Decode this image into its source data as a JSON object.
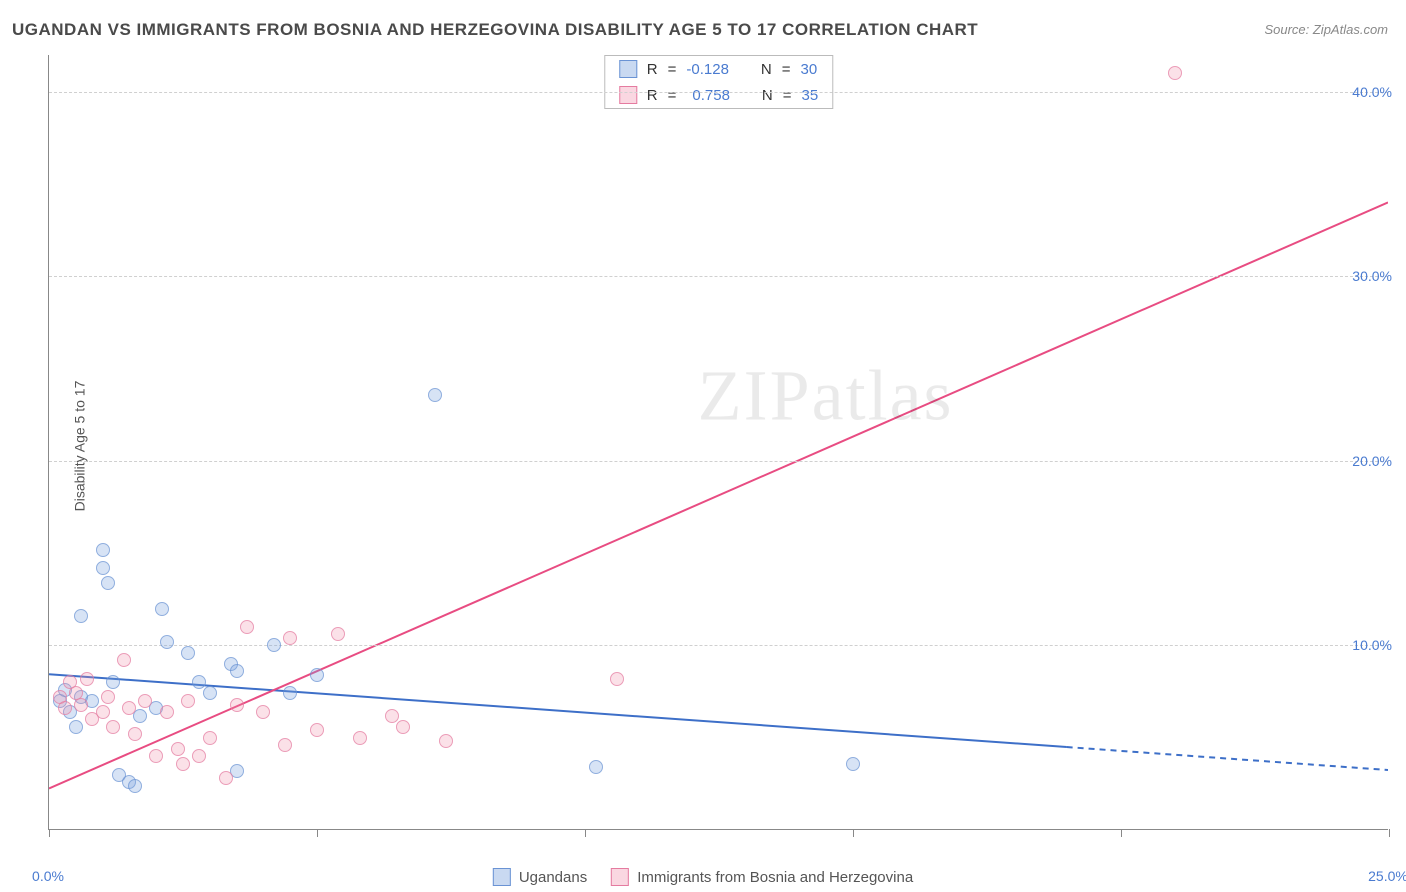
{
  "title": "UGANDAN VS IMMIGRANTS FROM BOSNIA AND HERZEGOVINA DISABILITY AGE 5 TO 17 CORRELATION CHART",
  "source_label": "Source: ZipAtlas.com",
  "y_axis_title": "Disability Age 5 to 17",
  "watermark": {
    "bold": "ZIP",
    "light": "atlas"
  },
  "chart": {
    "type": "scatter",
    "xlim": [
      0,
      25
    ],
    "ylim": [
      0,
      42
    ],
    "x_ticks": [
      0,
      5,
      10,
      15,
      20,
      25
    ],
    "x_tick_labels": [
      "0.0%",
      "",
      "",
      "",
      "",
      "25.0%"
    ],
    "y_ticks": [
      10,
      20,
      30,
      40
    ],
    "y_tick_labels": [
      "10.0%",
      "20.0%",
      "30.0%",
      "40.0%"
    ],
    "grid_color": "#d0d0d0",
    "background_color": "#ffffff",
    "marker_size": 14,
    "series": [
      {
        "name": "Ugandans",
        "color_fill": "rgba(120,160,220,0.4)",
        "color_stroke": "#6a93d4",
        "css_class": "blue",
        "r_value": "-0.128",
        "n_value": "30",
        "trend": {
          "x1": 0,
          "y1": 8.4,
          "x2": 25,
          "y2": 3.2,
          "solid_until_x": 19.0,
          "stroke": "#3d6fc8",
          "width": 2
        },
        "points": [
          [
            0.2,
            7.0
          ],
          [
            0.3,
            7.6
          ],
          [
            0.4,
            6.4
          ],
          [
            0.5,
            5.6
          ],
          [
            0.6,
            7.2
          ],
          [
            0.6,
            11.6
          ],
          [
            0.8,
            7.0
          ],
          [
            1.0,
            14.2
          ],
          [
            1.0,
            15.2
          ],
          [
            1.1,
            13.4
          ],
          [
            1.2,
            8.0
          ],
          [
            1.3,
            3.0
          ],
          [
            1.5,
            2.6
          ],
          [
            1.6,
            2.4
          ],
          [
            1.7,
            6.2
          ],
          [
            2.0,
            6.6
          ],
          [
            2.1,
            12.0
          ],
          [
            2.2,
            10.2
          ],
          [
            2.6,
            9.6
          ],
          [
            2.8,
            8.0
          ],
          [
            3.0,
            7.4
          ],
          [
            3.4,
            9.0
          ],
          [
            3.5,
            3.2
          ],
          [
            3.5,
            8.6
          ],
          [
            4.2,
            10.0
          ],
          [
            4.5,
            7.4
          ],
          [
            5.0,
            8.4
          ],
          [
            7.2,
            23.6
          ],
          [
            10.2,
            3.4
          ],
          [
            15.0,
            3.6
          ]
        ]
      },
      {
        "name": "Immigrants from Bosnia and Herzegovina",
        "color_fill": "rgba(240,140,170,0.35)",
        "color_stroke": "#e57ba0",
        "css_class": "pink",
        "r_value": "0.758",
        "n_value": "35",
        "trend": {
          "x1": 0,
          "y1": 2.2,
          "x2": 25,
          "y2": 34.0,
          "solid_until_x": 25,
          "stroke": "#e84c82",
          "width": 2
        },
        "points": [
          [
            0.2,
            7.2
          ],
          [
            0.3,
            6.6
          ],
          [
            0.4,
            8.0
          ],
          [
            0.5,
            7.4
          ],
          [
            0.6,
            6.8
          ],
          [
            0.7,
            8.2
          ],
          [
            0.8,
            6.0
          ],
          [
            1.0,
            6.4
          ],
          [
            1.1,
            7.2
          ],
          [
            1.2,
            5.6
          ],
          [
            1.4,
            9.2
          ],
          [
            1.5,
            6.6
          ],
          [
            1.6,
            5.2
          ],
          [
            1.8,
            7.0
          ],
          [
            2.0,
            4.0
          ],
          [
            2.2,
            6.4
          ],
          [
            2.4,
            4.4
          ],
          [
            2.5,
            3.6
          ],
          [
            2.6,
            7.0
          ],
          [
            2.8,
            4.0
          ],
          [
            3.0,
            5.0
          ],
          [
            3.3,
            2.8
          ],
          [
            3.5,
            6.8
          ],
          [
            3.7,
            11.0
          ],
          [
            4.0,
            6.4
          ],
          [
            4.4,
            4.6
          ],
          [
            4.5,
            10.4
          ],
          [
            5.0,
            5.4
          ],
          [
            5.4,
            10.6
          ],
          [
            5.8,
            5.0
          ],
          [
            6.4,
            6.2
          ],
          [
            6.6,
            5.6
          ],
          [
            7.4,
            4.8
          ],
          [
            10.6,
            8.2
          ],
          [
            21.0,
            41.0
          ]
        ]
      }
    ]
  },
  "legend_bottom": [
    {
      "class": "blue",
      "label_key": "chart.series.0.name"
    },
    {
      "class": "pink",
      "label_key": "chart.series.1.name"
    }
  ],
  "correlation_labels": {
    "r": "R",
    "n": "N",
    "eq": "="
  }
}
